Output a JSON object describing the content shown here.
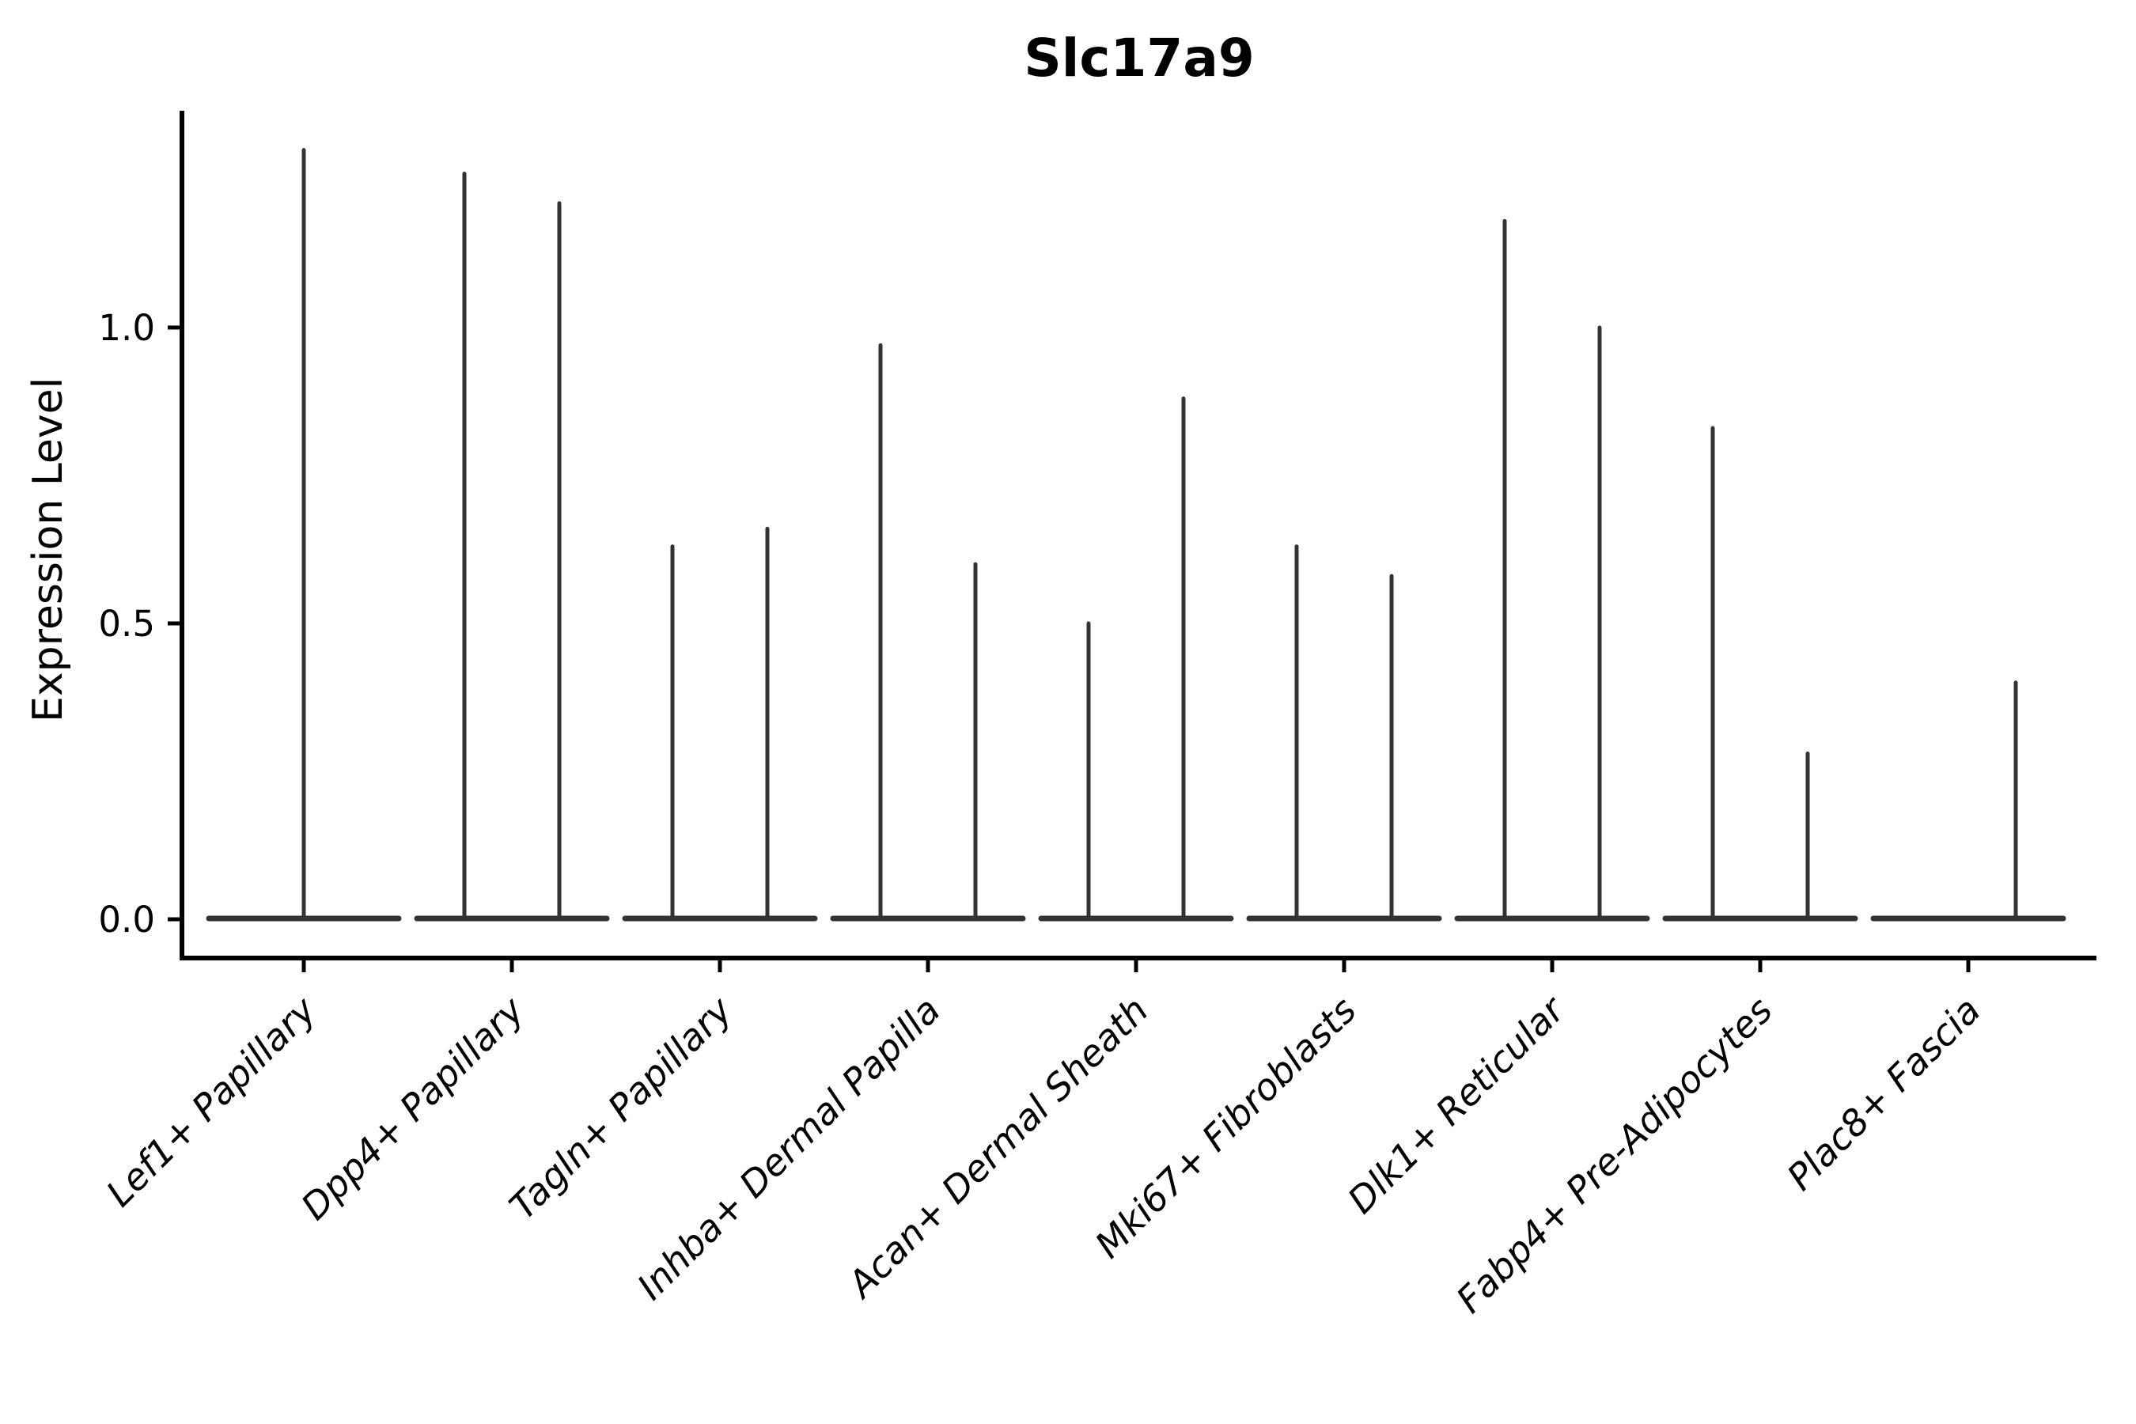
{
  "chart_data": {
    "type": "violin",
    "title": "Slc17a9",
    "ylabel": "Expression Level",
    "xlabel": "",
    "yticks": [
      0.0,
      0.5,
      1.0
    ],
    "ytick_labels": [
      "0.0",
      "0.5",
      "1.0"
    ],
    "ylim": [
      -0.065,
      1.37
    ],
    "grid": false,
    "legend": "none",
    "violins_per_category": 2,
    "categories": [
      {
        "label": "Lef1+ Papillary",
        "spikes": [
          {
            "position": "center",
            "max": 1.3
          }
        ]
      },
      {
        "label": "Dpp4+ Papillary",
        "spikes": [
          {
            "position": "left",
            "max": 1.26
          },
          {
            "position": "right",
            "max": 1.21
          }
        ]
      },
      {
        "label": "Tagln+ Papillary",
        "spikes": [
          {
            "position": "left",
            "max": 0.63
          },
          {
            "position": "right",
            "max": 0.66
          }
        ]
      },
      {
        "label": "Inhba+ Dermal Papilla",
        "spikes": [
          {
            "position": "left",
            "max": 0.97
          },
          {
            "position": "right",
            "max": 0.6
          }
        ]
      },
      {
        "label": "Acan+ Dermal Sheath",
        "spikes": [
          {
            "position": "left",
            "max": 0.5
          },
          {
            "position": "right",
            "max": 0.88
          }
        ]
      },
      {
        "label": "Mki67+ Fibroblasts",
        "spikes": [
          {
            "position": "left",
            "max": 0.63
          },
          {
            "position": "right",
            "max": 0.58
          }
        ]
      },
      {
        "label": "Dlk1+ Reticular",
        "spikes": [
          {
            "position": "left",
            "max": 1.18
          },
          {
            "position": "right",
            "max": 1.0
          }
        ]
      },
      {
        "label": "Fabp4+ Pre-Adipocytes",
        "spikes": [
          {
            "position": "left",
            "max": 0.83
          },
          {
            "position": "right",
            "max": 0.28
          }
        ]
      },
      {
        "label": "Plac8+ Fascia",
        "spikes": [
          {
            "position": "right",
            "max": 0.4
          }
        ]
      }
    ],
    "colors": {
      "violin_stroke": "#333333",
      "axis": "#000000",
      "text": "#000000",
      "background": "#ffffff"
    }
  }
}
